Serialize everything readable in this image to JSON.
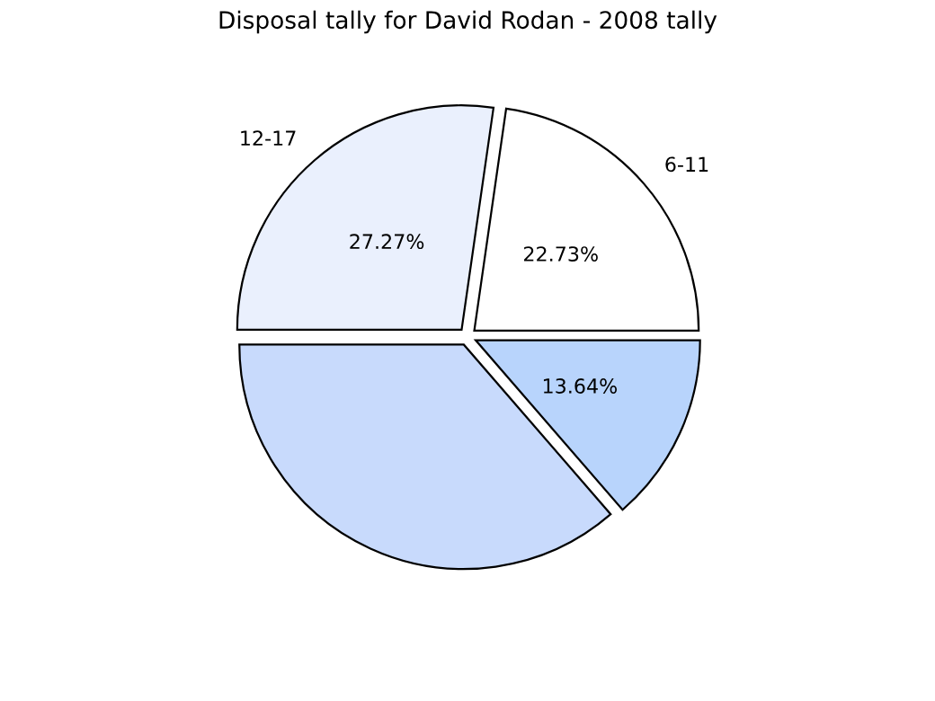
{
  "chart_data": {
    "type": "pie",
    "title": "Disposal tally for David Rodan - 2008 tally",
    "categories": [
      "12-17",
      "6-11",
      null,
      null
    ],
    "values": [
      27.27,
      22.73,
      13.64,
      36.36
    ],
    "value_labels": [
      "27.27%",
      "22.73%",
      "13.64%",
      null
    ],
    "colors": [
      "#eaf0fd",
      "#ffffff",
      "#b8d4fc",
      "#c8dafc"
    ],
    "legend": false
  }
}
